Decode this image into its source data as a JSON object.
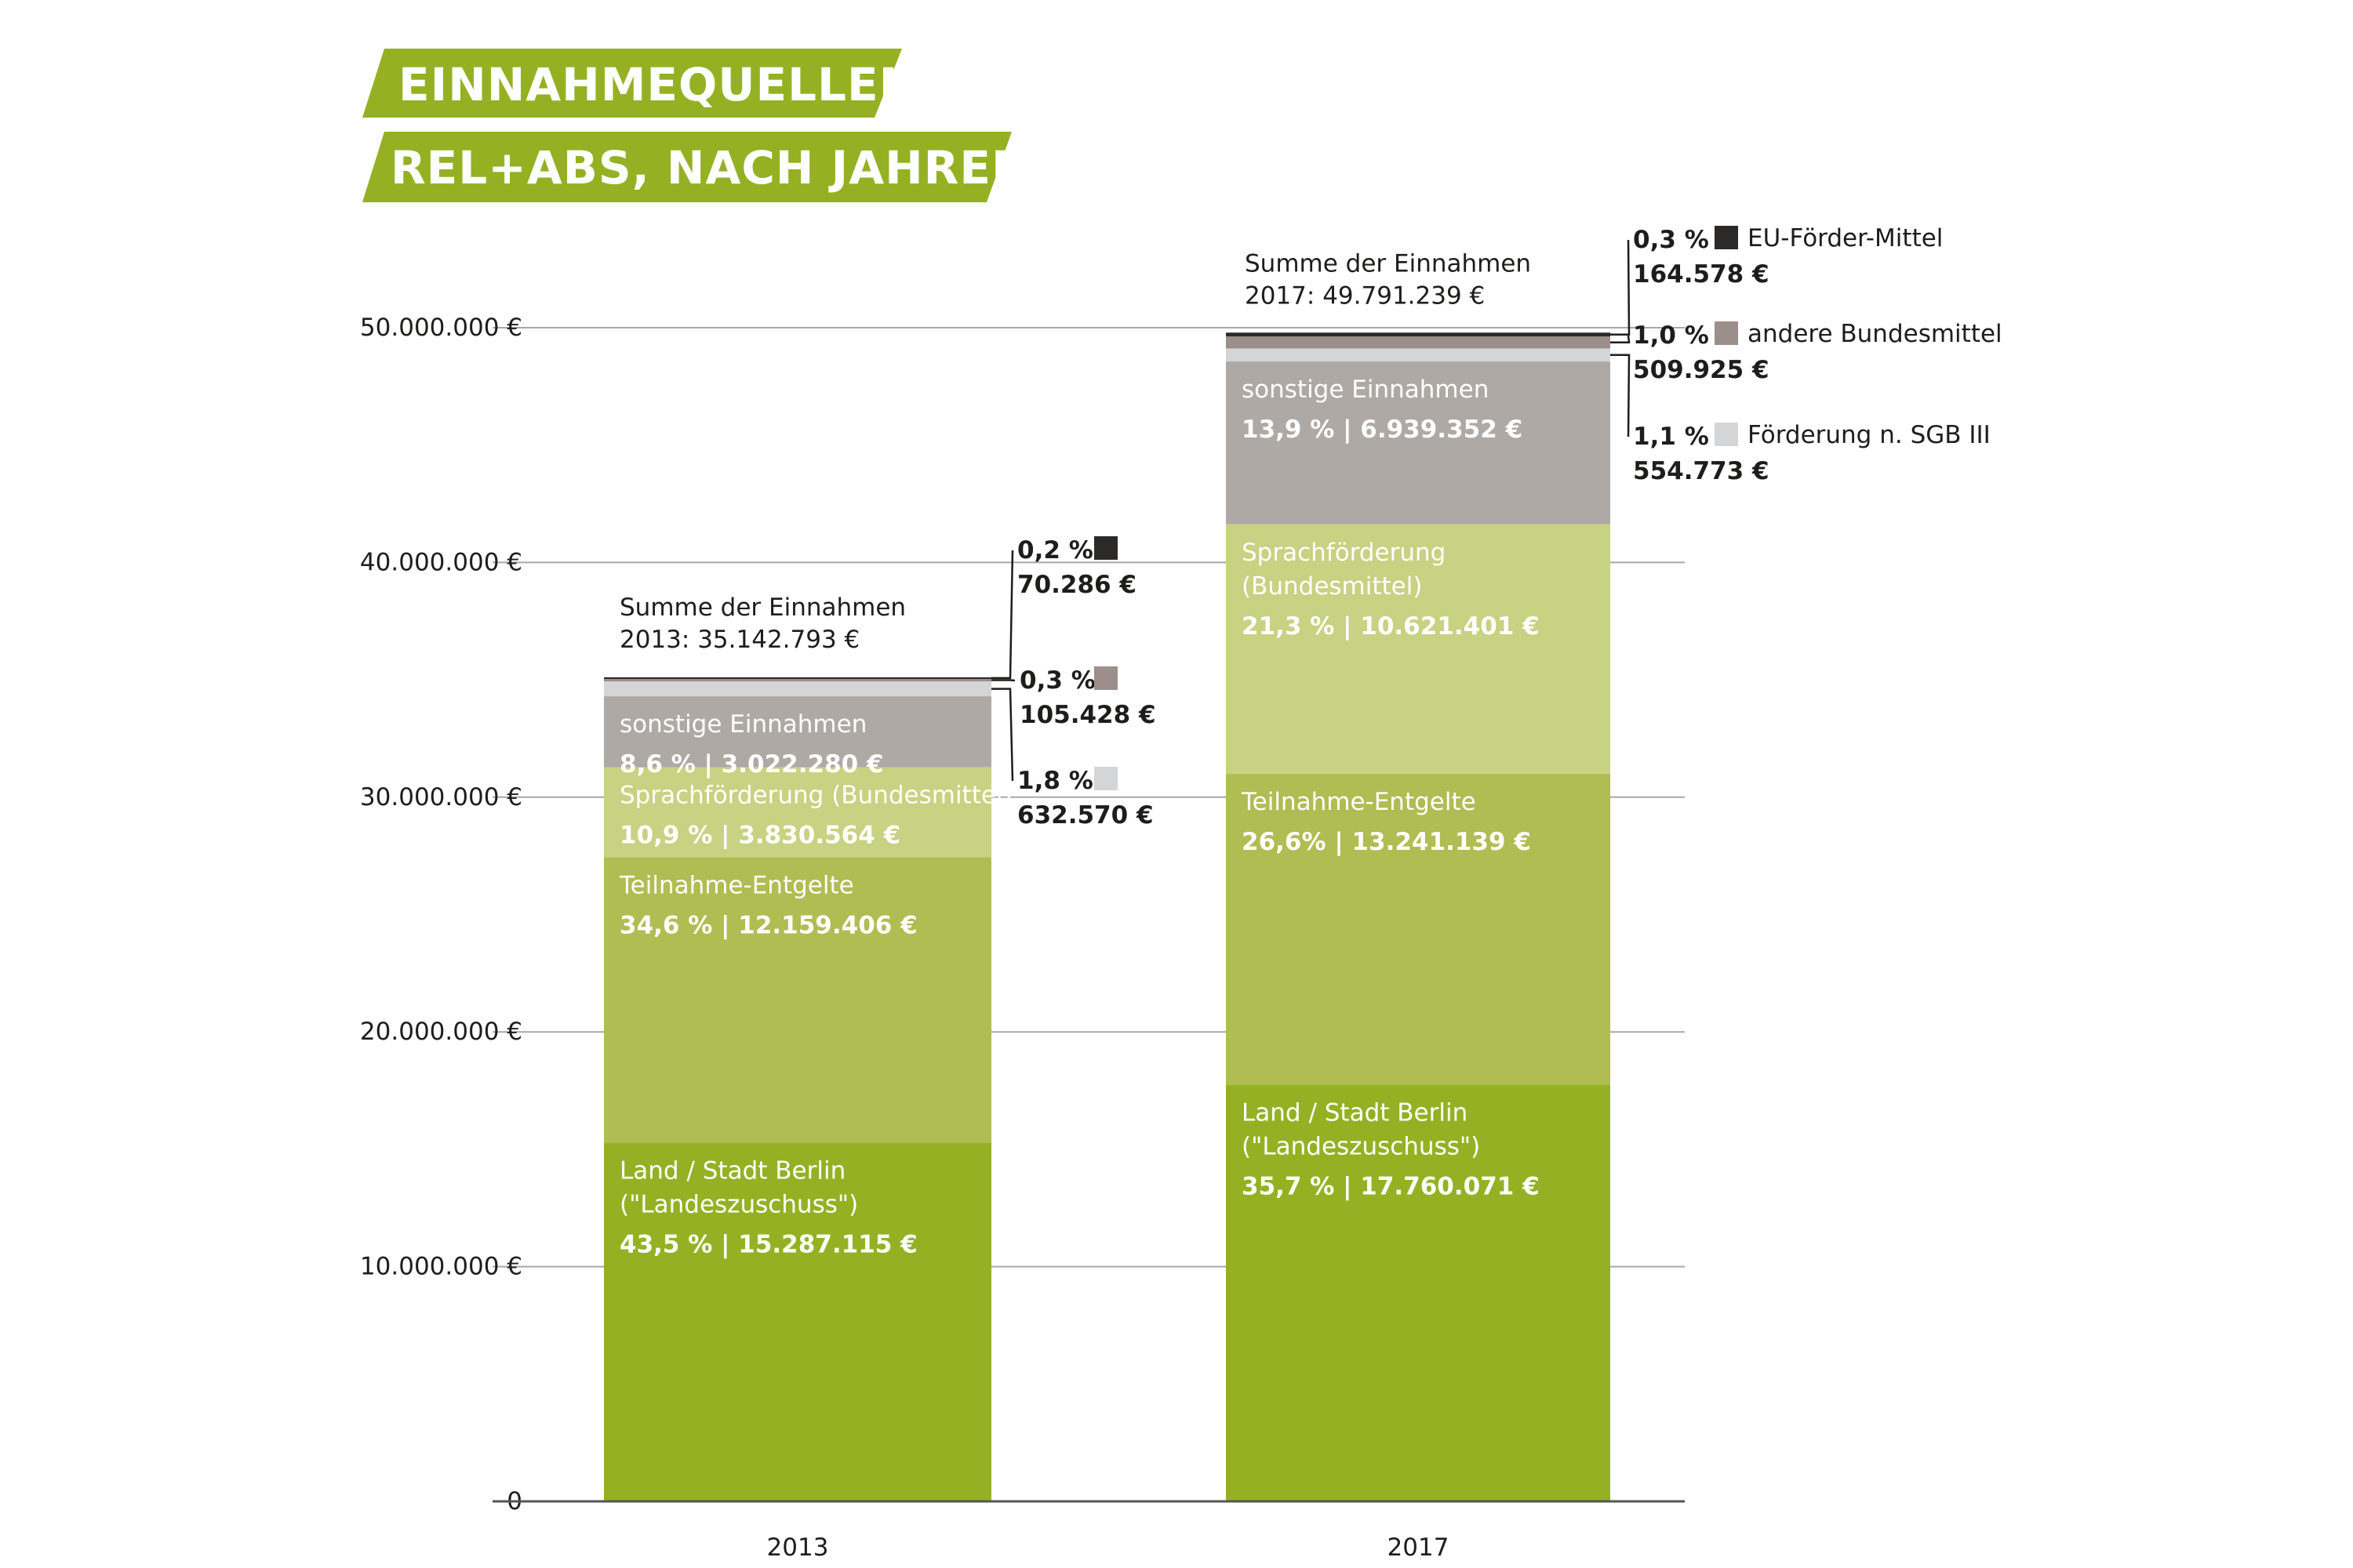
{
  "header": {
    "title": "EINNAHMEQUELLEN",
    "subtitle": "REL+ABS, NACH JAHREN",
    "banner_color": "#95b123"
  },
  "colors": {
    "Land / Stadt Berlin": "#95b123",
    "Teilnahme-Entgelte": "#afbd52",
    "Sprachförderung": "#c7d282",
    "sonstige Einnahmen": "#aea9a4",
    "Förderung n. SGB III": "#d4d5d7",
    "andere Bundesmittel": "#9c8f8b",
    "EU-Förder-Mittel": "#2b2a29",
    "gridline": "#a8a8a8",
    "axis": "#555555",
    "text": "#1d1d1b"
  },
  "legend": [
    {
      "name": "EU-Förder-Mittel",
      "pct": "0,3 %",
      "abs": "164.578 €"
    },
    {
      "name": "andere Bundesmittel",
      "pct": "1,0 %",
      "abs": "509.925 €"
    },
    {
      "name": "Förderung n. SGB III",
      "pct": "1,1 %",
      "abs": "554.773 €"
    }
  ],
  "chart_data": {
    "type": "bar",
    "stacked": true,
    "categories": [
      "2013",
      "2017"
    ],
    "ylim": [
      0,
      50000000
    ],
    "yticks": [
      0,
      10000000,
      20000000,
      30000000,
      40000000,
      50000000
    ],
    "ytick_labels": [
      "0",
      "10.000.000 €",
      "20.000.000 €",
      "30.000.000 €",
      "40.000.000 €",
      "50.000.000 €"
    ],
    "grid": true,
    "totals": [
      {
        "label": "Summe der Einnahmen",
        "value_text": "2013: 35.142.793 €",
        "value": 35142793
      },
      {
        "label": "Summe der Einnahmen",
        "value_text": "2017: 49.791.239 €",
        "value": 49791239
      }
    ],
    "series": [
      {
        "name": "Land / Stadt Berlin",
        "values": [
          15287115,
          17760071
        ],
        "labels": [
          [
            "Land / Stadt Berlin",
            "(\"Landeszuschuss\")"
          ],
          [
            "Land / Stadt Berlin",
            "(\"Landeszuschuss\")"
          ]
        ],
        "value_texts": [
          "43,5 % | 15.287.115 €",
          "35,7 % | 17.760.071 €"
        ]
      },
      {
        "name": "Teilnahme-Entgelte",
        "values": [
          12159406,
          13241139
        ],
        "labels": [
          [
            "Teilnahme-Entgelte"
          ],
          [
            "Teilnahme-Entgelte"
          ]
        ],
        "value_texts": [
          "34,6 % | 12.159.406 €",
          "26,6% | 13.241.139 €"
        ]
      },
      {
        "name": "Sprachförderung",
        "values": [
          3830564,
          10621401
        ],
        "labels": [
          [
            "Sprachförderung (Bundesmittel)"
          ],
          [
            "Sprachförderung",
            "(Bundesmittel)"
          ]
        ],
        "value_texts": [
          "10,9 % | 3.830.564 €",
          "21,3 % | 10.621.401 €"
        ]
      },
      {
        "name": "sonstige Einnahmen",
        "values": [
          3022280,
          6939352
        ],
        "labels": [
          [
            "sonstige Einnahmen"
          ],
          [
            "sonstige Einnahmen"
          ]
        ],
        "value_texts": [
          "8,6 % | 3.022.280 €",
          "13,9 % | 6.939.352 €"
        ]
      },
      {
        "name": "Förderung n. SGB III",
        "values": [
          632570,
          554773
        ],
        "callouts": [
          {
            "pct": "1,8 %",
            "abs": "632.570 €"
          },
          {
            "pct": "1,1 %",
            "abs": "554.773 €"
          }
        ]
      },
      {
        "name": "andere Bundesmittel",
        "values": [
          105428,
          509925
        ],
        "callouts": [
          {
            "pct": "0,3 %",
            "abs": "105.428 €"
          },
          {
            "pct": "1,0 %",
            "abs": "509.925 €"
          }
        ]
      },
      {
        "name": "EU-Förder-Mittel",
        "values": [
          70286,
          164578
        ],
        "callouts": [
          {
            "pct": "0,2 %",
            "abs": "70.286 €"
          },
          {
            "pct": "0,3 %",
            "abs": "164.578 €"
          }
        ]
      }
    ]
  }
}
